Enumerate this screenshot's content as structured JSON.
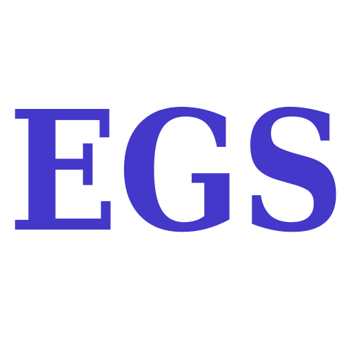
{
  "logo": {
    "text": "EGS",
    "color": "#4338c9",
    "background": "#ffffff"
  }
}
